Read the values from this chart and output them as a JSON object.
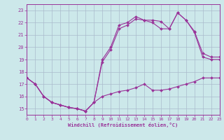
{
  "background_color": "#cce8ea",
  "line_color": "#993399",
  "grid_color": "#aabbcc",
  "xlabel": "Windchill (Refroidissement éolien,°C)",
  "xlim": [
    0,
    23
  ],
  "ylim": [
    14.5,
    23.5
  ],
  "yticks": [
    15,
    16,
    17,
    18,
    19,
    20,
    21,
    22,
    23
  ],
  "xticks": [
    0,
    1,
    2,
    3,
    4,
    5,
    6,
    7,
    8,
    9,
    10,
    11,
    12,
    13,
    14,
    15,
    16,
    17,
    18,
    19,
    20,
    21,
    22,
    23
  ],
  "line1_x": [
    0,
    1,
    2,
    3,
    4,
    5,
    6,
    7,
    8,
    9,
    10,
    11,
    12,
    13,
    14,
    15,
    16,
    17,
    18,
    19,
    20,
    21,
    22,
    23
  ],
  "line1_y": [
    17.5,
    17.0,
    16.0,
    15.5,
    15.3,
    15.1,
    15.0,
    14.8,
    15.5,
    16.0,
    16.2,
    16.4,
    16.5,
    16.7,
    17.0,
    16.5,
    16.5,
    16.6,
    16.8,
    17.0,
    17.2,
    17.5,
    17.5,
    17.5
  ],
  "line2_x": [
    0,
    1,
    2,
    3,
    4,
    5,
    6,
    7,
    8,
    9,
    10,
    11,
    12,
    13,
    14,
    15,
    16,
    17,
    18,
    19,
    20,
    21,
    22,
    23
  ],
  "line2_y": [
    17.5,
    17.0,
    16.0,
    15.5,
    15.3,
    15.1,
    15.0,
    14.8,
    15.5,
    18.8,
    19.8,
    21.5,
    21.8,
    22.3,
    22.2,
    22.2,
    22.1,
    21.5,
    22.8,
    22.2,
    21.2,
    19.2,
    19.0,
    19.0
  ],
  "line3_x": [
    0,
    1,
    2,
    3,
    4,
    5,
    6,
    7,
    8,
    9,
    10,
    11,
    12,
    13,
    14,
    15,
    16,
    17,
    18,
    19,
    20,
    21,
    22,
    23
  ],
  "line3_y": [
    17.5,
    17.0,
    16.0,
    15.5,
    15.3,
    15.1,
    15.0,
    14.8,
    15.5,
    19.0,
    20.0,
    21.8,
    22.0,
    22.5,
    22.2,
    22.0,
    21.5,
    21.5,
    22.8,
    22.2,
    21.3,
    19.5,
    19.2,
    19.2
  ]
}
